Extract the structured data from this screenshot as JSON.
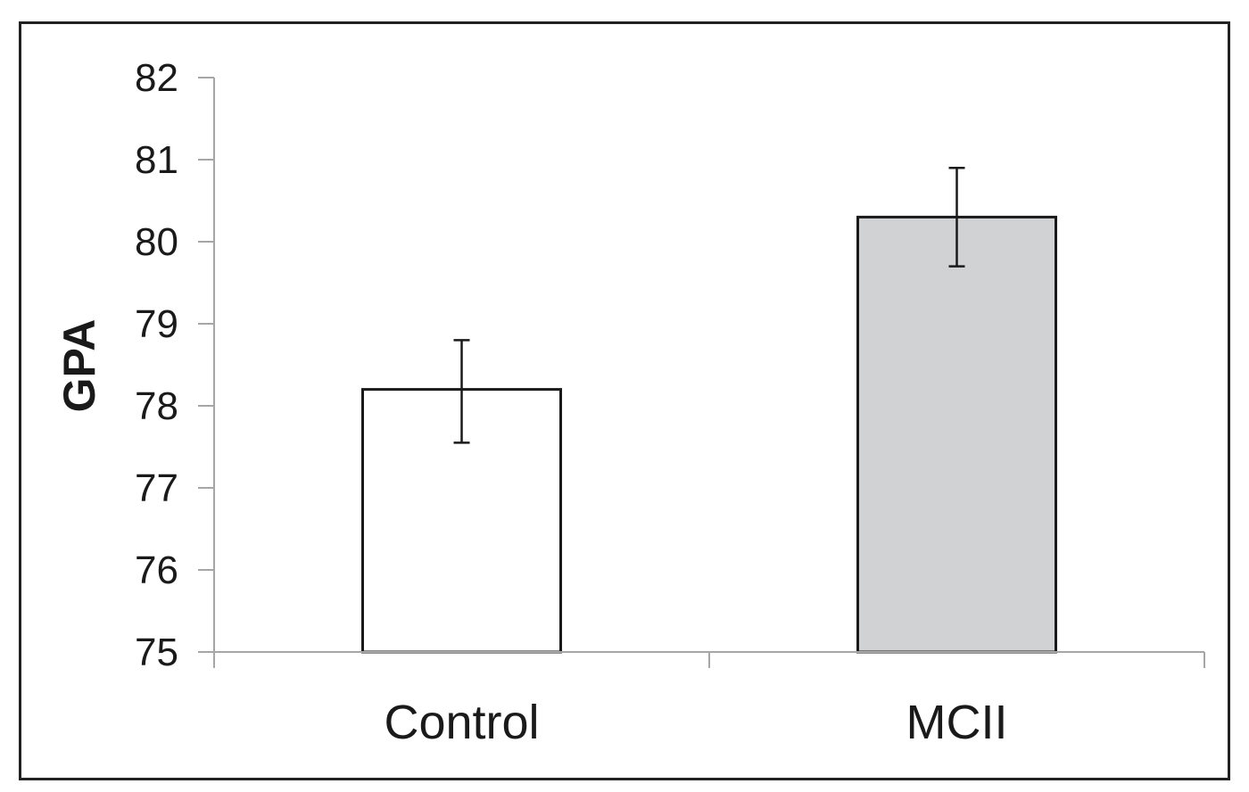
{
  "chart_data": {
    "type": "bar",
    "title": "",
    "xlabel": "",
    "ylabel": "GPA",
    "categories": [
      "Control",
      "MCII"
    ],
    "values": [
      78.2,
      80.3
    ],
    "error_bars": [
      {
        "low": 77.55,
        "high": 78.8
      },
      {
        "low": 79.7,
        "high": 80.9
      }
    ],
    "ylim": [
      75,
      82
    ],
    "yticks": [
      75,
      76,
      77,
      78,
      79,
      80,
      81,
      82
    ],
    "grid": false,
    "legend": "none",
    "bar_colors": [
      "#ffffff",
      "#d0d2d3"
    ],
    "bar_edge_color": "#1a1a1a",
    "axis_color": "#a6a6a6"
  }
}
